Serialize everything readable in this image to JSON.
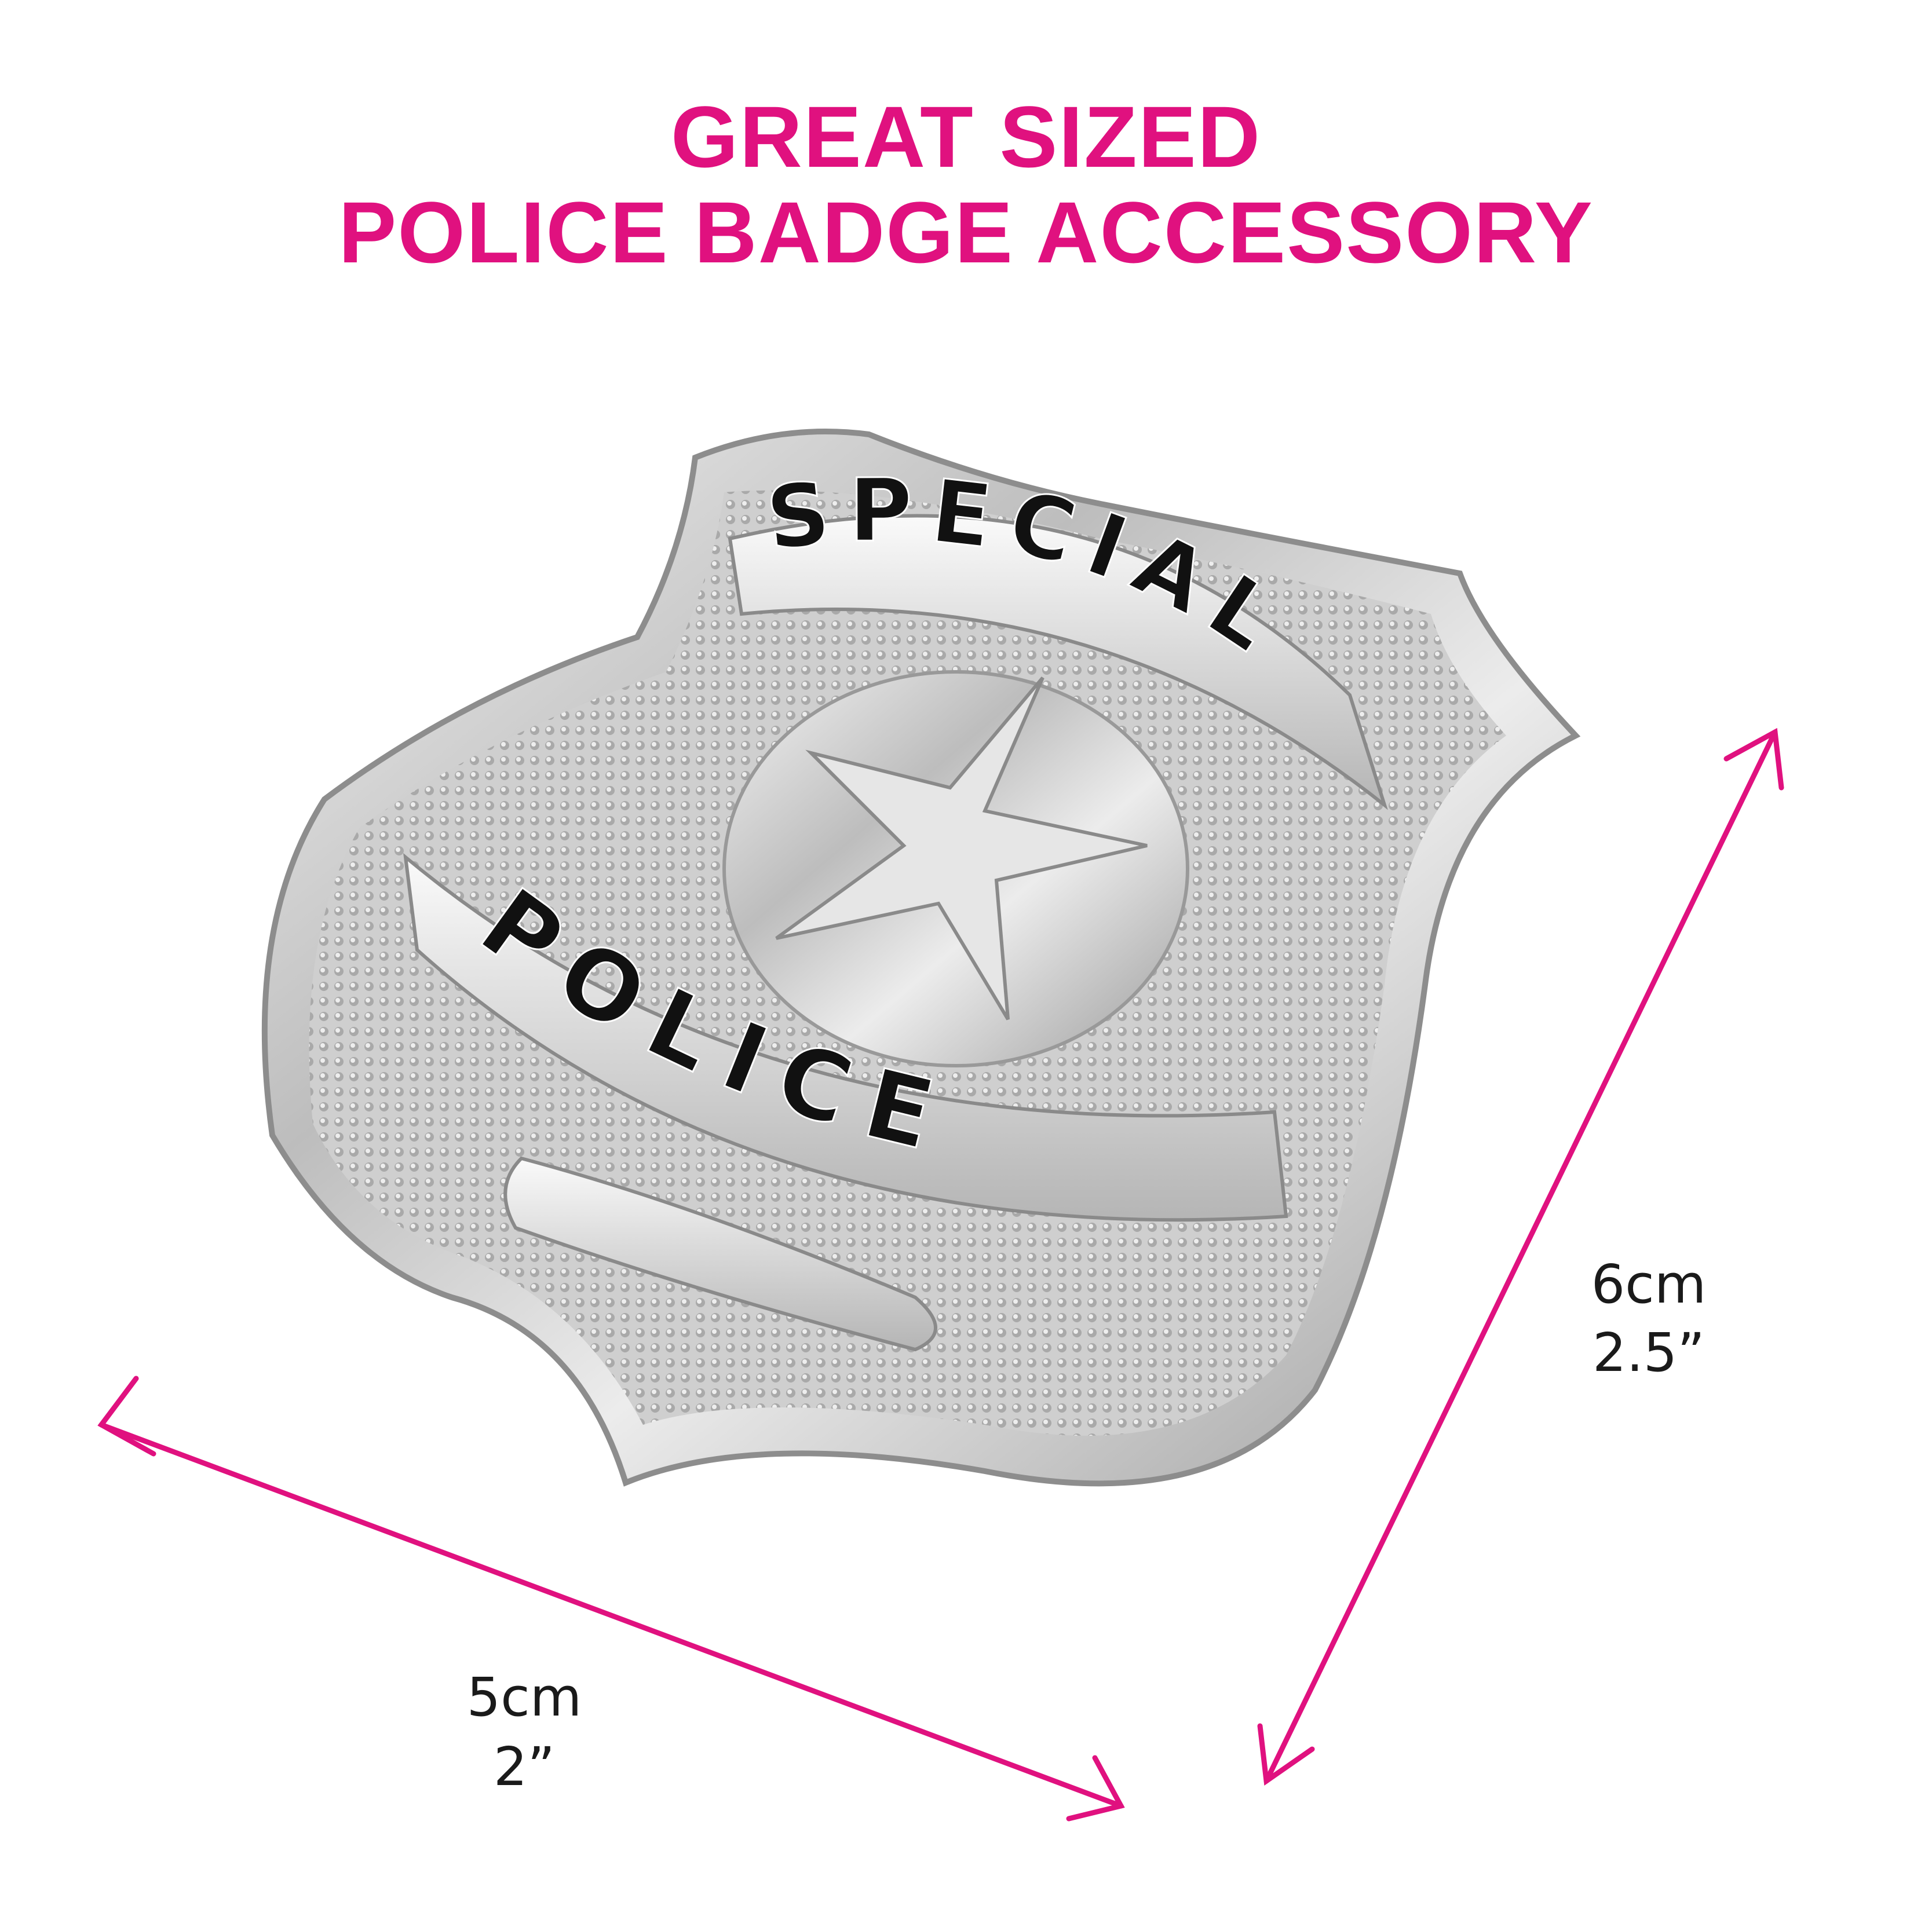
{
  "title": {
    "line1": "GREAT SIZED",
    "line2": "POLICE BADGE ACCESSORY"
  },
  "badge": {
    "top_text": "SPECIAL",
    "bottom_text": "POLICE"
  },
  "dimensions": {
    "width": {
      "metric": "5cm",
      "imperial": "2”"
    },
    "height": {
      "metric": "6cm",
      "imperial": "2.5”"
    }
  },
  "colors": {
    "accent": "#E0117F",
    "text": "#1a1a1a",
    "badge_metal": "#c9c9c9"
  }
}
